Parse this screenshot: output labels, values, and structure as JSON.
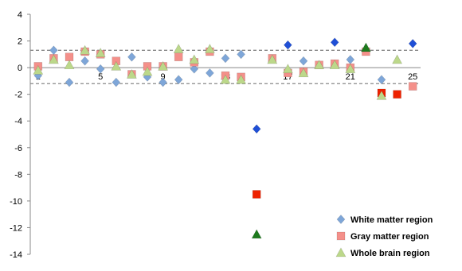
{
  "chart_data": {
    "type": "scatter",
    "title": "",
    "xlabel": "",
    "ylabel": "",
    "ylim": [
      -14,
      4
    ],
    "xlim": [
      0.5,
      25.5
    ],
    "yticks": [
      4,
      2,
      0,
      -2,
      -4,
      -6,
      -8,
      -10,
      -12,
      -14
    ],
    "xticks": [
      1,
      5,
      9,
      13,
      17,
      21,
      25
    ],
    "reference_lines": [
      1.3,
      -1.2
    ],
    "grid": false,
    "legend_position": "bottom-right",
    "series": [
      {
        "name": "White matter region",
        "marker": "diamond",
        "color": "#7ea6d8",
        "points": [
          {
            "x": 1,
            "y": -0.6
          },
          {
            "x": 2,
            "y": 1.3
          },
          {
            "x": 3,
            "y": -1.1
          },
          {
            "x": 4,
            "y": 0.5
          },
          {
            "x": 5,
            "y": -0.1
          },
          {
            "x": 6,
            "y": -1.1
          },
          {
            "x": 7,
            "y": 0.8
          },
          {
            "x": 8,
            "y": -0.7
          },
          {
            "x": 9,
            "y": -1.1
          },
          {
            "x": 10,
            "y": -0.9
          },
          {
            "x": 11,
            "y": -0.1
          },
          {
            "x": 12,
            "y": -0.4
          },
          {
            "x": 13,
            "y": 0.7
          },
          {
            "x": 14,
            "y": 1.0
          },
          {
            "x": 15,
            "y": -4.6,
            "highlight": true
          },
          {
            "x": 17,
            "y": 1.7,
            "highlight": true
          },
          {
            "x": 18,
            "y": 0.5
          },
          {
            "x": 20,
            "y": 1.9,
            "highlight": true
          },
          {
            "x": 21,
            "y": 0.6
          },
          {
            "x": 23,
            "y": -0.9
          },
          {
            "x": 25,
            "y": 1.8,
            "highlight": true
          }
        ]
      },
      {
        "name": "Gray matter region",
        "marker": "square",
        "color": "#f4908a",
        "points": [
          {
            "x": 1,
            "y": 0.1
          },
          {
            "x": 2,
            "y": 0.7
          },
          {
            "x": 3,
            "y": 0.8
          },
          {
            "x": 4,
            "y": 1.2
          },
          {
            "x": 5,
            "y": 1.0
          },
          {
            "x": 6,
            "y": 0.5
          },
          {
            "x": 7,
            "y": -0.5
          },
          {
            "x": 8,
            "y": 0.1
          },
          {
            "x": 9,
            "y": 0.1
          },
          {
            "x": 10,
            "y": 0.8
          },
          {
            "x": 11,
            "y": 0.4
          },
          {
            "x": 12,
            "y": 1.2
          },
          {
            "x": 13,
            "y": -0.6
          },
          {
            "x": 14,
            "y": -0.7
          },
          {
            "x": 15,
            "y": -9.5,
            "highlight": true
          },
          {
            "x": 16,
            "y": 0.7
          },
          {
            "x": 17,
            "y": -0.4
          },
          {
            "x": 18,
            "y": -0.3
          },
          {
            "x": 19,
            "y": 0.2
          },
          {
            "x": 20,
            "y": 0.3
          },
          {
            "x": 21,
            "y": 0.0
          },
          {
            "x": 22,
            "y": 1.2
          },
          {
            "x": 23,
            "y": -1.9,
            "highlight": true
          },
          {
            "x": 24,
            "y": -2.0,
            "highlight": true
          },
          {
            "x": 25,
            "y": -1.4
          }
        ]
      },
      {
        "name": "Whole brain region",
        "marker": "triangle",
        "color": "#bcd88a",
        "points": [
          {
            "x": 1,
            "y": -0.2
          },
          {
            "x": 2,
            "y": 0.6
          },
          {
            "x": 3,
            "y": 0.2
          },
          {
            "x": 4,
            "y": 1.3
          },
          {
            "x": 5,
            "y": 1.1
          },
          {
            "x": 6,
            "y": 0.1
          },
          {
            "x": 7,
            "y": -0.5
          },
          {
            "x": 8,
            "y": -0.3
          },
          {
            "x": 9,
            "y": 0.1
          },
          {
            "x": 10,
            "y": 1.4
          },
          {
            "x": 11,
            "y": 0.6
          },
          {
            "x": 12,
            "y": 1.4
          },
          {
            "x": 13,
            "y": -0.9
          },
          {
            "x": 14,
            "y": -0.9
          },
          {
            "x": 15,
            "y": -12.5,
            "highlight": true
          },
          {
            "x": 16,
            "y": 0.6
          },
          {
            "x": 17,
            "y": -0.1
          },
          {
            "x": 18,
            "y": -0.4
          },
          {
            "x": 19,
            "y": 0.2
          },
          {
            "x": 20,
            "y": 0.2
          },
          {
            "x": 21,
            "y": -0.1
          },
          {
            "x": 22,
            "y": 1.5,
            "highlight": true
          },
          {
            "x": 23,
            "y": -2.1
          },
          {
            "x": 24,
            "y": 0.6
          }
        ]
      }
    ],
    "highlight_colors": {
      "White matter region": "#1f4fd6",
      "Gray matter region": "#ee2200",
      "Whole brain region": "#1d7a1d"
    }
  }
}
